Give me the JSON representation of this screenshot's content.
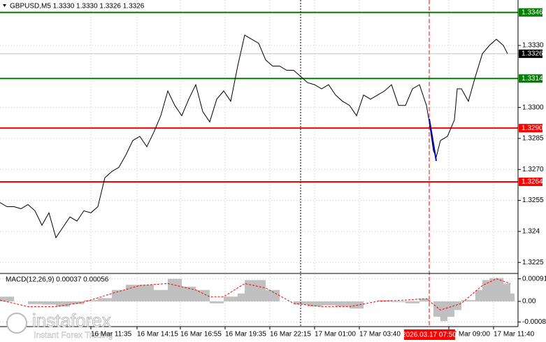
{
  "chart_data": [
    {
      "type": "line",
      "title": "GBPUSD,M5  1.3330 1.3330 1.3326 1.3326",
      "color": "#000000",
      "x": [
        0,
        5,
        10,
        15,
        20,
        25,
        30,
        35,
        40,
        45,
        50,
        55,
        60,
        65,
        70,
        75,
        80,
        85,
        90,
        95,
        100,
        105,
        110,
        115,
        120,
        125,
        130,
        135,
        140,
        145,
        150,
        155,
        160,
        165,
        170,
        175,
        180,
        185,
        190,
        195,
        200,
        205,
        210,
        215,
        220,
        225,
        230,
        235,
        240,
        245,
        250,
        255,
        260,
        265,
        270,
        275,
        280,
        285,
        290,
        295,
        300,
        305,
        307,
        310,
        312,
        315,
        320,
        325,
        327,
        330,
        335,
        340,
        345,
        350,
        355,
        360,
        363
      ],
      "values": [
        1.3254,
        1.3252,
        1.3252,
        1.3251,
        1.3253,
        1.325,
        1.3243,
        1.3249,
        1.3237,
        1.3242,
        1.3247,
        1.3245,
        1.325,
        1.3249,
        1.3252,
        1.3266,
        1.3269,
        1.3271,
        1.3277,
        1.3284,
        1.3286,
        1.3281,
        1.3288,
        1.3296,
        1.3308,
        1.3301,
        1.3296,
        1.3304,
        1.3311,
        1.3298,
        1.3293,
        1.3304,
        1.3308,
        1.3303,
        1.332,
        1.3335,
        1.3333,
        1.3331,
        1.3323,
        1.332,
        1.332,
        1.3318,
        1.3318,
        1.3315,
        1.3312,
        1.3311,
        1.3309,
        1.3311,
        1.3306,
        1.3303,
        1.3301,
        1.3296,
        1.3306,
        1.3304,
        1.3306,
        1.3308,
        1.3311,
        1.3301,
        1.3301,
        1.3309,
        1.3311,
        1.3301,
        1.3293,
        1.3279,
        1.3276,
        1.3284,
        1.3286,
        1.3294,
        1.3309,
        1.3309,
        1.3303,
        1.3315,
        1.3326,
        1.333,
        1.3333,
        1.333,
        1.3326
      ],
      "xlim": [
        0,
        370
      ],
      "ylim": [
        1.322,
        1.3352
      ],
      "yticks": [
        {
          "value": 1.333,
          "label": "1.3330"
        },
        {
          "value": 1.33,
          "label": "1.3300"
        },
        1.3285,
        {
          "value": 1.327,
          "label": "1.3270"
        },
        1.3255,
        1.324,
        1.3225
      ],
      "xticks": [
        {
          "value": 65,
          "label": "16 Mar 11:35"
        },
        {
          "value": 98,
          "label": "16 Mar 14:15"
        },
        {
          "value": 129,
          "label": "16 Mar 16:55"
        },
        {
          "value": 161,
          "label": "16 Mar 19:35"
        },
        {
          "value": 193,
          "label": "16 Mar 22:15"
        },
        {
          "value": 225,
          "label": "17 Mar 01:00"
        },
        {
          "value": 257,
          "label": "17 Mar 03:40"
        },
        {
          "value": 321,
          "label": "17 Mar 09:00"
        },
        {
          "value": 353,
          "label": "17 Mar 11:40"
        }
      ],
      "levels": [
        {
          "value": 1.3346,
          "color": "#008000"
        },
        {
          "value": 1.3314,
          "color": "#008000"
        },
        {
          "value": 1.3326,
          "color": "#000000"
        },
        {
          "value": 1.329,
          "label": "1.3290",
          "color": "#ff0000"
        },
        {
          "value": 1.3264,
          "color": "#ff0000"
        }
      ],
      "crosshair": {
        "x": 307,
        "label": "2026.03.17 07:50"
      },
      "grid": true
    },
    {
      "type": "macd",
      "title": "MACD(12,26,9) 0.00037 0.00056",
      "xlim": [
        0,
        370
      ],
      "ylim": [
        -0.00099,
        0.00107
      ],
      "yticks": [
        0.00091,
        {
          "value": 0,
          "label": "0.00"
        },
        -0.00083
      ],
      "series": [
        {
          "type": "bar",
          "color": "#c0c0c0",
          "x": [
            0,
            10,
            20,
            30,
            40,
            50,
            60,
            70,
            80,
            90,
            100,
            110,
            120,
            130,
            140,
            150,
            160,
            170,
            175,
            185,
            190,
            200,
            210,
            220,
            230,
            240,
            250,
            260,
            270,
            280,
            290,
            300,
            307,
            310,
            315,
            320,
            325,
            330,
            340,
            345,
            350,
            360,
            365
          ],
          "values": [
            0.00019,
            0,
            -0.00011,
            -0.00013,
            -0.00021,
            -0.00011,
            5e-05,
            0.00013,
            0.00046,
            0.00067,
            0.00067,
            0.00046,
            0.00091,
            0.00059,
            0.00046,
            -8e-05,
            0.00019,
            0.00032,
            0.00086,
            0.00086,
            0.00046,
            0,
            -0.00013,
            -0.00021,
            -0.00016,
            -0.00021,
            -0.00029,
            0,
            5e-05,
            -3e-05,
            -8e-05,
            0.00011,
            0,
            -0.00062,
            -0.0008,
            -0.00062,
            -0.00035,
            5e-05,
            0.00046,
            0.00086,
            0.00094,
            0.00072,
            0.00032
          ]
        },
        {
          "type": "line",
          "color": "#ff0000",
          "x": [
            0,
            20,
            40,
            60,
            80,
            100,
            120,
            140,
            150,
            160,
            175,
            190,
            210,
            230,
            250,
            270,
            290,
            305,
            315,
            330,
            345,
            355,
            365
          ],
          "values": [
            5e-05,
            -0.00021,
            -0.00021,
            -3e-05,
            0.00032,
            0.00064,
            0.00072,
            0.00046,
            0.00019,
            0.00019,
            0.00072,
            0.00054,
            -8e-05,
            -0.00021,
            -0.00021,
            0,
            5e-05,
            0.00011,
            -0.00035,
            -8e-05,
            0.00064,
            0.00091,
            0.00072
          ]
        }
      ]
    }
  ],
  "watermark": {
    "brand": "instaforex",
    "tagline": "Instant Forex Trading"
  }
}
